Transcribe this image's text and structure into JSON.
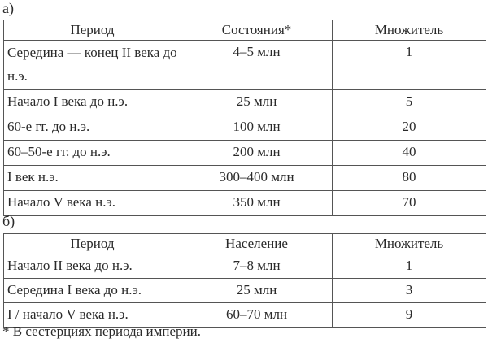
{
  "table_a": {
    "label": "а)",
    "headers": [
      "Период",
      "Состояния*",
      "Множитель"
    ],
    "rows": [
      [
        "Середина — конец II века до н.э.",
        "4–5 млн",
        "1"
      ],
      [
        "Начало I века до н.э.",
        "25 млн",
        "5"
      ],
      [
        "60-е гг. до н.э.",
        "100 млн",
        "20"
      ],
      [
        "60–50-е гг. до н.э.",
        "200 млн",
        "40"
      ],
      [
        "I век н.э.",
        "300–400 млн",
        "80"
      ],
      [
        "Начало V века н.э.",
        "350 млн",
        "70"
      ]
    ]
  },
  "table_b": {
    "label": "б)",
    "headers": [
      "Период",
      "Население",
      "Множитель"
    ],
    "rows": [
      [
        "Начало II века до н.э.",
        "7–8 млн",
        "1"
      ],
      [
        "Середина I века до н.э.",
        "25 млн",
        "3"
      ],
      [
        "I / начало V века н.э.",
        "60–70 млн",
        "9"
      ]
    ]
  },
  "footnote": "* В сестерциях периода империи."
}
